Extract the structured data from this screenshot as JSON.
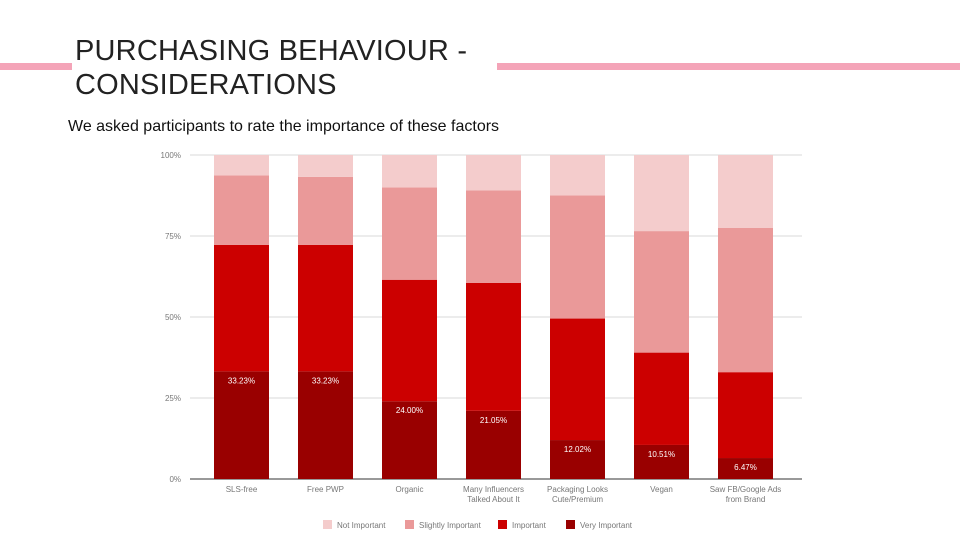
{
  "slide": {
    "title_line1": "PURCHASING BEHAVIOUR -",
    "title_line2": "CONSIDERATIONS",
    "subtitle": "We asked participants to rate the importance of these factors"
  },
  "chart_data": {
    "type": "bar",
    "stacked": true,
    "normalized": true,
    "categories": [
      [
        "SLS-free"
      ],
      [
        "Free PWP"
      ],
      [
        "Organic"
      ],
      [
        "Many Influencers",
        "Talked About It"
      ],
      [
        "Packaging Looks",
        "Cute/Premium"
      ],
      [
        "Vegan"
      ],
      [
        "Saw FB/Google Ads",
        "from Brand"
      ]
    ],
    "series": [
      {
        "name": "Very Important",
        "color": "#990000",
        "values": [
          33.23,
          33.23,
          24.0,
          21.05,
          12.02,
          10.51,
          6.47
        ]
      },
      {
        "name": "Important",
        "color": "#cc0000",
        "values": [
          39,
          39,
          37.5,
          39.5,
          37.5,
          28.5,
          26.5
        ]
      },
      {
        "name": "Slightly Important",
        "color": "#ea9999",
        "values": [
          21.5,
          21,
          28.5,
          28.5,
          38,
          37.5,
          44.5
        ]
      },
      {
        "name": "Not Important",
        "color": "#f4cccc",
        "values": [
          6.27,
          6.77,
          10,
          10.95,
          12.48,
          23.49,
          22.53
        ]
      }
    ],
    "data_labels": [
      "33.23%",
      "33.23%",
      "24.00%",
      "21.05%",
      "12.02%",
      "10.51%",
      "6.47%"
    ],
    "y_ticks": [
      "0%",
      "25%",
      "50%",
      "75%",
      "100%"
    ],
    "ylim": [
      0,
      100
    ],
    "grid": true,
    "legend_position": "bottom"
  }
}
